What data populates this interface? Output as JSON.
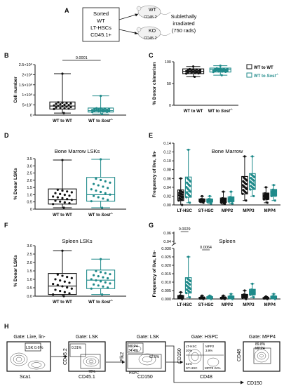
{
  "panels": {
    "A": {
      "letter": "A",
      "sorted_lines": [
        "Sorted",
        "WT",
        "LT-HSCs",
        "CD45.1+"
      ],
      "mouse_wt": "WT",
      "mouse_wt_sub": "CD45.2",
      "mouse_ko": "KO",
      "mouse_ko_sub": "CD45.2",
      "irradiated_lines": [
        "Sublethally",
        "irradiated",
        "(750 rads)"
      ]
    },
    "B": {
      "letter": "B",
      "ylabel": "Cell number",
      "pvalue": "0.0001",
      "yticks": [
        "0",
        "5×10⁷",
        "1×10⁸",
        "1.5×10⁸",
        "2×10⁸",
        "2.5×10⁸"
      ],
      "groups": [
        "WT to WT",
        "WT to Sost"
      ]
    },
    "C": {
      "letter": "C",
      "ylabel": "% Donor chimerism",
      "yticks": [
        "0",
        "50",
        "100"
      ],
      "groups": [
        "WT to WT",
        "WT to Sost"
      ],
      "legend": [
        "WT to WT",
        "WT to Sost"
      ]
    },
    "D": {
      "letter": "D",
      "title": "Bone Marrow LSKs",
      "ylabel": "% Donor LSKs",
      "yticks": [
        "0",
        "0.5",
        "1.0",
        "1.5",
        "2.0",
        "2.5",
        "3.0",
        "3.5"
      ],
      "groups": [
        "WT to WT",
        "WT to Sost"
      ]
    },
    "E": {
      "letter": "E",
      "title": "Bone Marrow",
      "ylabel": "Frequency of live, lin-",
      "yticks": [
        "0.00",
        "0.02",
        "0.04",
        "0.06",
        "0.08",
        "0.10",
        "0.12",
        "0.14"
      ],
      "groups": [
        "LT-HSC",
        "ST-HSC",
        "MPP2",
        "MPP3",
        "MPP4"
      ]
    },
    "F": {
      "letter": "F",
      "title": "Spleen LSKs",
      "ylabel": "% Donor LSKs",
      "yticks": [
        "0.0",
        "0.5",
        "1.0",
        "1.5",
        "2.0",
        "2.5",
        "3.0"
      ],
      "groups": [
        "WT to WT",
        "WT to Sost"
      ]
    },
    "G": {
      "letter": "G",
      "title": "Spleen",
      "ylabel": "Frequency of live, lin-",
      "yticks": [
        "0.000",
        "0.005",
        "0.010",
        "0.015",
        "0.020",
        "0.025",
        "0.030"
      ],
      "yticks_top": [
        "0.04",
        "0.06"
      ],
      "pvalue1": "0.0029",
      "pvalue2": "0.0064",
      "groups": [
        "LT-HSC",
        "ST-HSC",
        "MPP2",
        "MPP3",
        "MPP4"
      ]
    },
    "H": {
      "letter": "H",
      "gates": [
        "Gate: Live, lin-",
        "Gate: LSK",
        "Gate: LSK",
        "Gate: HSPC",
        "Gate: MPP4"
      ],
      "p1": {
        "x": "Sca1",
        "y": "",
        "gate": "LSK 0.6%"
      },
      "p2": {
        "x": "CD45.1",
        "y": "CD45.2",
        "v1": "0.31%",
        "v2": "78%"
      },
      "p3": {
        "x": "CD150",
        "y": "Flk2",
        "mpp4": "MPP4",
        "mpp4v": "34.4%",
        "hspc": "HSPC",
        "v": "62.5%"
      },
      "p4": {
        "x": "CD48",
        "y": "CD150",
        "lt": "LT-HSC",
        "ltv": "20%",
        "mpp2": "MPP2",
        "mpp2v": "3.9%",
        "st": "ST-HSC",
        "stv": "51%",
        "mpp3": "MPP3 24%"
      },
      "p5": {
        "x": "CD150",
        "y": "CD48",
        "v": "89.8%",
        "mpp4": "MPP4"
      }
    }
  },
  "sup": "-/-",
  "chart_data": [
    {
      "panel": "B",
      "type": "box",
      "ylabel": "Cell number",
      "ylim": [
        0,
        250000000
      ],
      "series": [
        {
          "name": "WT to WT",
          "min": 10000000,
          "q1": 30000000,
          "median": 45000000,
          "q3": 65000000,
          "max": 205000000
        },
        {
          "name": "WT to Sost-/-",
          "min": 5000000,
          "q1": 15000000,
          "median": 22000000,
          "q3": 35000000,
          "max": 95000000
        }
      ]
    },
    {
      "panel": "C",
      "type": "box",
      "ylabel": "% Donor chimerism",
      "ylim": [
        0,
        110
      ],
      "series": [
        {
          "name": "WT to WT",
          "min": 72,
          "q1": 80,
          "median": 86,
          "q3": 92,
          "max": 98
        },
        {
          "name": "WT to Sost-/-",
          "min": 76,
          "q1": 84,
          "median": 90,
          "q3": 94,
          "max": 100
        }
      ]
    },
    {
      "panel": "D",
      "type": "box",
      "ylabel": "% Donor LSKs",
      "ylim": [
        0,
        3.5
      ],
      "series": [
        {
          "name": "WT to WT",
          "min": 0.1,
          "q1": 0.35,
          "median": 0.65,
          "q3": 1.4,
          "max": 3.4
        },
        {
          "name": "WT to Sost-/-",
          "min": 0.1,
          "q1": 0.55,
          "median": 1.0,
          "q3": 2.2,
          "max": 3.45
        }
      ]
    },
    {
      "panel": "E",
      "type": "box",
      "ylabel": "Frequency of live, lin-",
      "ylim": [
        0,
        0.14
      ],
      "categories": [
        "LT-HSC",
        "ST-HSC",
        "MPP2",
        "MPP3",
        "MPP4"
      ],
      "series": [
        {
          "name": "WT to WT",
          "min": [
            0.0,
            0.005,
            0.002,
            0.01,
            0.005
          ],
          "median": [
            0.02,
            0.01,
            0.008,
            0.04,
            0.02
          ],
          "max": [
            0.06,
            0.02,
            0.03,
            0.11,
            0.04
          ]
        },
        {
          "name": "WT to Sost-/-",
          "min": [
            0.005,
            0.003,
            0.003,
            0.02,
            0.01
          ],
          "median": [
            0.03,
            0.01,
            0.012,
            0.05,
            0.03
          ],
          "max": [
            0.125,
            0.02,
            0.03,
            0.11,
            0.045
          ]
        }
      ]
    },
    {
      "panel": "F",
      "type": "box",
      "ylabel": "% Donor LSKs",
      "ylim": [
        0,
        3.0
      ],
      "series": [
        {
          "name": "WT to WT",
          "min": 0.0,
          "q1": 0.1,
          "median": 0.6,
          "q3": 1.35,
          "max": 2.7
        },
        {
          "name": "WT to Sost-/-",
          "min": 0.1,
          "q1": 0.45,
          "median": 0.95,
          "q3": 1.55,
          "max": 2.2
        }
      ]
    },
    {
      "panel": "G",
      "type": "box",
      "ylabel": "Frequency of live, lin-",
      "ylim": [
        0,
        0.06
      ],
      "categories": [
        "LT-HSC",
        "ST-HSC",
        "MPP2",
        "MPP3",
        "MPP4"
      ],
      "series": [
        {
          "name": "WT to WT",
          "min": [
            0.0,
            0.0,
            0.0,
            0.0,
            0.0
          ],
          "median": [
            0.002,
            0.001,
            0.001,
            0.003,
            0.001
          ],
          "max": [
            0.008,
            0.004,
            0.004,
            0.01,
            0.003
          ]
        },
        {
          "name": "WT to Sost-/-",
          "min": [
            0.002,
            0.0,
            0.0,
            0.002,
            0.0
          ],
          "median": [
            0.012,
            0.002,
            0.002,
            0.008,
            0.002
          ],
          "max": [
            0.05,
            0.004,
            0.006,
            0.018,
            0.006
          ]
        }
      ]
    }
  ]
}
